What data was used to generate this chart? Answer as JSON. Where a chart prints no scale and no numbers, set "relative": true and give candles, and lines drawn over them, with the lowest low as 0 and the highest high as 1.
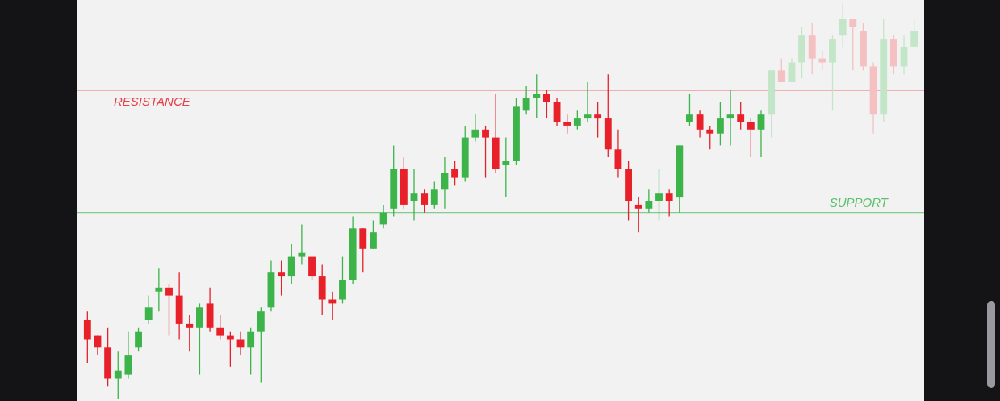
{
  "chart_data": {
    "type": "candlestick",
    "relative": true,
    "categories": [
      null,
      null,
      null,
      null,
      null,
      null,
      null,
      null,
      null,
      null,
      null,
      null,
      null,
      null,
      null,
      null,
      null,
      null,
      null,
      null,
      null,
      null,
      null,
      null,
      null,
      null,
      null,
      null,
      null,
      null,
      null,
      null,
      null,
      null,
      null,
      null,
      null,
      null,
      null,
      null,
      null,
      null,
      null,
      null,
      null,
      null,
      null,
      null,
      null,
      null,
      null,
      null,
      null,
      null,
      null,
      null,
      null,
      null,
      null,
      null,
      null,
      null,
      null,
      null,
      null,
      null,
      null,
      null,
      null,
      null,
      null,
      null,
      null,
      null,
      null,
      null,
      null,
      null,
      null,
      null,
      null,
      null
    ],
    "ohlc": [
      [
        0.2,
        0.22,
        0.09,
        0.15
      ],
      [
        0.16,
        0.16,
        0.11,
        0.13
      ],
      [
        0.13,
        0.18,
        0.03,
        0.05
      ],
      [
        0.05,
        0.12,
        0,
        0.07
      ],
      [
        0.06,
        0.17,
        0.05,
        0.11
      ],
      [
        0.13,
        0.18,
        0.12,
        0.17
      ],
      [
        0.2,
        0.26,
        0.19,
        0.23
      ],
      [
        0.27,
        0.33,
        0.22,
        0.28
      ],
      [
        0.28,
        0.29,
        0.16,
        0.26
      ],
      [
        0.26,
        0.32,
        0.15,
        0.19
      ],
      [
        0.19,
        0.21,
        0.12,
        0.18
      ],
      [
        0.18,
        0.24,
        0.06,
        0.23
      ],
      [
        0.24,
        0.28,
        0.17,
        0.18
      ],
      [
        0.18,
        0.21,
        0.15,
        0.16
      ],
      [
        0.16,
        0.17,
        0.08,
        0.15
      ],
      [
        0.15,
        0.17,
        0.11,
        0.13
      ],
      [
        0.13,
        0.18,
        0.06,
        0.17
      ],
      [
        0.17,
        0.23,
        0.04,
        0.22
      ],
      [
        0.23,
        0.35,
        0.22,
        0.32
      ],
      [
        0.32,
        0.35,
        0.26,
        0.31
      ],
      [
        0.31,
        0.39,
        0.29,
        0.36
      ],
      [
        0.36,
        0.44,
        0.34,
        0.37
      ],
      [
        0.36,
        0.36,
        0.3,
        0.31
      ],
      [
        0.31,
        0.34,
        0.21,
        0.25
      ],
      [
        0.25,
        0.27,
        0.2,
        0.24
      ],
      [
        0.25,
        0.36,
        0.24,
        0.3
      ],
      [
        0.3,
        0.46,
        0.29,
        0.43
      ],
      [
        0.43,
        0.43,
        0.32,
        0.38
      ],
      [
        0.38,
        0.45,
        0.38,
        0.42
      ],
      [
        0.44,
        0.49,
        0.43,
        0.47
      ],
      [
        0.48,
        0.64,
        0.46,
        0.58
      ],
      [
        0.58,
        0.61,
        0.48,
        0.49
      ],
      [
        0.5,
        0.58,
        0.45,
        0.52
      ],
      [
        0.52,
        0.53,
        0.47,
        0.49
      ],
      [
        0.49,
        0.55,
        0.48,
        0.53
      ],
      [
        0.53,
        0.61,
        0.48,
        0.57
      ],
      [
        0.58,
        0.6,
        0.54,
        0.56
      ],
      [
        0.56,
        0.69,
        0.55,
        0.66
      ],
      [
        0.66,
        0.72,
        0.65,
        0.68
      ],
      [
        0.68,
        0.69,
        0.56,
        0.66
      ],
      [
        0.66,
        0.77,
        0.57,
        0.58
      ],
      [
        0.59,
        0.66,
        0.51,
        0.6
      ],
      [
        0.6,
        0.76,
        0.59,
        0.74
      ],
      [
        0.73,
        0.79,
        0.72,
        0.76
      ],
      [
        0.76,
        0.82,
        0.71,
        0.77
      ],
      [
        0.77,
        0.78,
        0.71,
        0.75
      ],
      [
        0.75,
        0.76,
        0.69,
        0.7
      ],
      [
        0.7,
        0.72,
        0.67,
        0.69
      ],
      [
        0.69,
        0.73,
        0.68,
        0.71
      ],
      [
        0.71,
        0.8,
        0.7,
        0.72
      ],
      [
        0.72,
        0.75,
        0.66,
        0.71
      ],
      [
        0.71,
        0.82,
        0.61,
        0.63
      ],
      [
        0.63,
        0.68,
        0.56,
        0.58
      ],
      [
        0.58,
        0.6,
        0.45,
        0.5
      ],
      [
        0.49,
        0.51,
        0.42,
        0.48
      ],
      [
        0.48,
        0.53,
        0.47,
        0.5
      ],
      [
        0.5,
        0.58,
        0.45,
        0.52
      ],
      [
        0.52,
        0.53,
        0.46,
        0.5
      ],
      [
        0.51,
        0.64,
        0.47,
        0.64
      ],
      [
        0.7,
        0.77,
        0.69,
        0.72
      ],
      [
        0.72,
        0.73,
        0.66,
        0.68
      ],
      [
        0.68,
        0.69,
        0.63,
        0.67
      ],
      [
        0.67,
        0.75,
        0.64,
        0.71
      ],
      [
        0.71,
        0.78,
        0.64,
        0.72
      ],
      [
        0.72,
        0.75,
        0.68,
        0.7
      ],
      [
        0.7,
        0.71,
        0.61,
        0.68
      ],
      [
        0.68,
        0.73,
        0.61,
        0.72
      ],
      [
        0.72,
        0.83,
        0.66,
        0.83
      ],
      [
        0.83,
        0.86,
        0.8,
        0.8
      ],
      [
        0.8,
        0.86,
        0.8,
        0.85
      ],
      [
        0.85,
        0.94,
        0.81,
        0.92
      ],
      [
        0.92,
        0.95,
        0.82,
        0.86
      ],
      [
        0.86,
        0.88,
        0.83,
        0.85
      ],
      [
        0.85,
        0.92,
        0.73,
        0.91
      ],
      [
        0.92,
        1,
        0.89,
        0.96
      ],
      [
        0.96,
        0.96,
        0.83,
        0.94
      ],
      [
        0.93,
        0.95,
        0.83,
        0.84
      ],
      [
        0.84,
        0.85,
        0.67,
        0.72
      ],
      [
        0.72,
        0.96,
        0.7,
        0.91
      ],
      [
        0.91,
        0.92,
        0.82,
        0.84
      ],
      [
        0.84,
        0.92,
        0.82,
        0.89
      ],
      [
        0.89,
        0.96,
        0.89,
        0.93
      ]
    ],
    "colors": [
      "#e8202a",
      "#e8202a",
      "#e8202a",
      "#3cb44a",
      "#3cb44a",
      "#3cb44a",
      "#3cb44a",
      "#3cb44a",
      "#e8202a",
      "#e8202a",
      "#e8202a",
      "#3cb44a",
      "#e8202a",
      "#e8202a",
      "#e8202a",
      "#e8202a",
      "#3cb44a",
      "#3cb44a",
      "#3cb44a",
      "#e8202a",
      "#3cb44a",
      "#3cb44a",
      "#e8202a",
      "#e8202a",
      "#e8202a",
      "#3cb44a",
      "#3cb44a",
      "#e8202a",
      "#3cb44a",
      "#3cb44a",
      "#3cb44a",
      "#e8202a",
      "#3cb44a",
      "#e8202a",
      "#3cb44a",
      "#3cb44a",
      "#e8202a",
      "#3cb44a",
      "#3cb44a",
      "#e8202a",
      "#e8202a",
      "#3cb44a",
      "#3cb44a",
      "#3cb44a",
      "#3cb44a",
      "#e8202a",
      "#e8202a",
      "#e8202a",
      "#3cb44a",
      "#3cb44a",
      "#e8202a",
      "#e8202a",
      "#e8202a",
      "#e8202a",
      "#e8202a",
      "#3cb44a",
      "#3cb44a",
      "#e8202a",
      "#3cb44a",
      "#3cb44a",
      "#e8202a",
      "#e8202a",
      "#3cb44a",
      "#3cb44a",
      "#e8202a",
      "#e8202a",
      "#3cb44a",
      "#c4e6c8",
      "#f4c0c2",
      "#c4e6c8",
      "#c4e6c8",
      "#f4c0c2",
      "#f4c0c2",
      "#c4e6c8",
      "#c4e6c8",
      "#f4c0c2",
      "#f4c0c2",
      "#f4c0c2",
      "#c4e6c8",
      "#f4c0c2",
      "#c4e6c8",
      "#c4e6c8"
    ],
    "ref_lines": [
      {
        "axis": "y",
        "value": 0.78,
        "label": "RESISTANCE",
        "color": "#e8404a"
      },
      {
        "axis": "y",
        "value": 0.47,
        "label": "SUPPORT",
        "color": "#5cbf6a"
      }
    ]
  }
}
